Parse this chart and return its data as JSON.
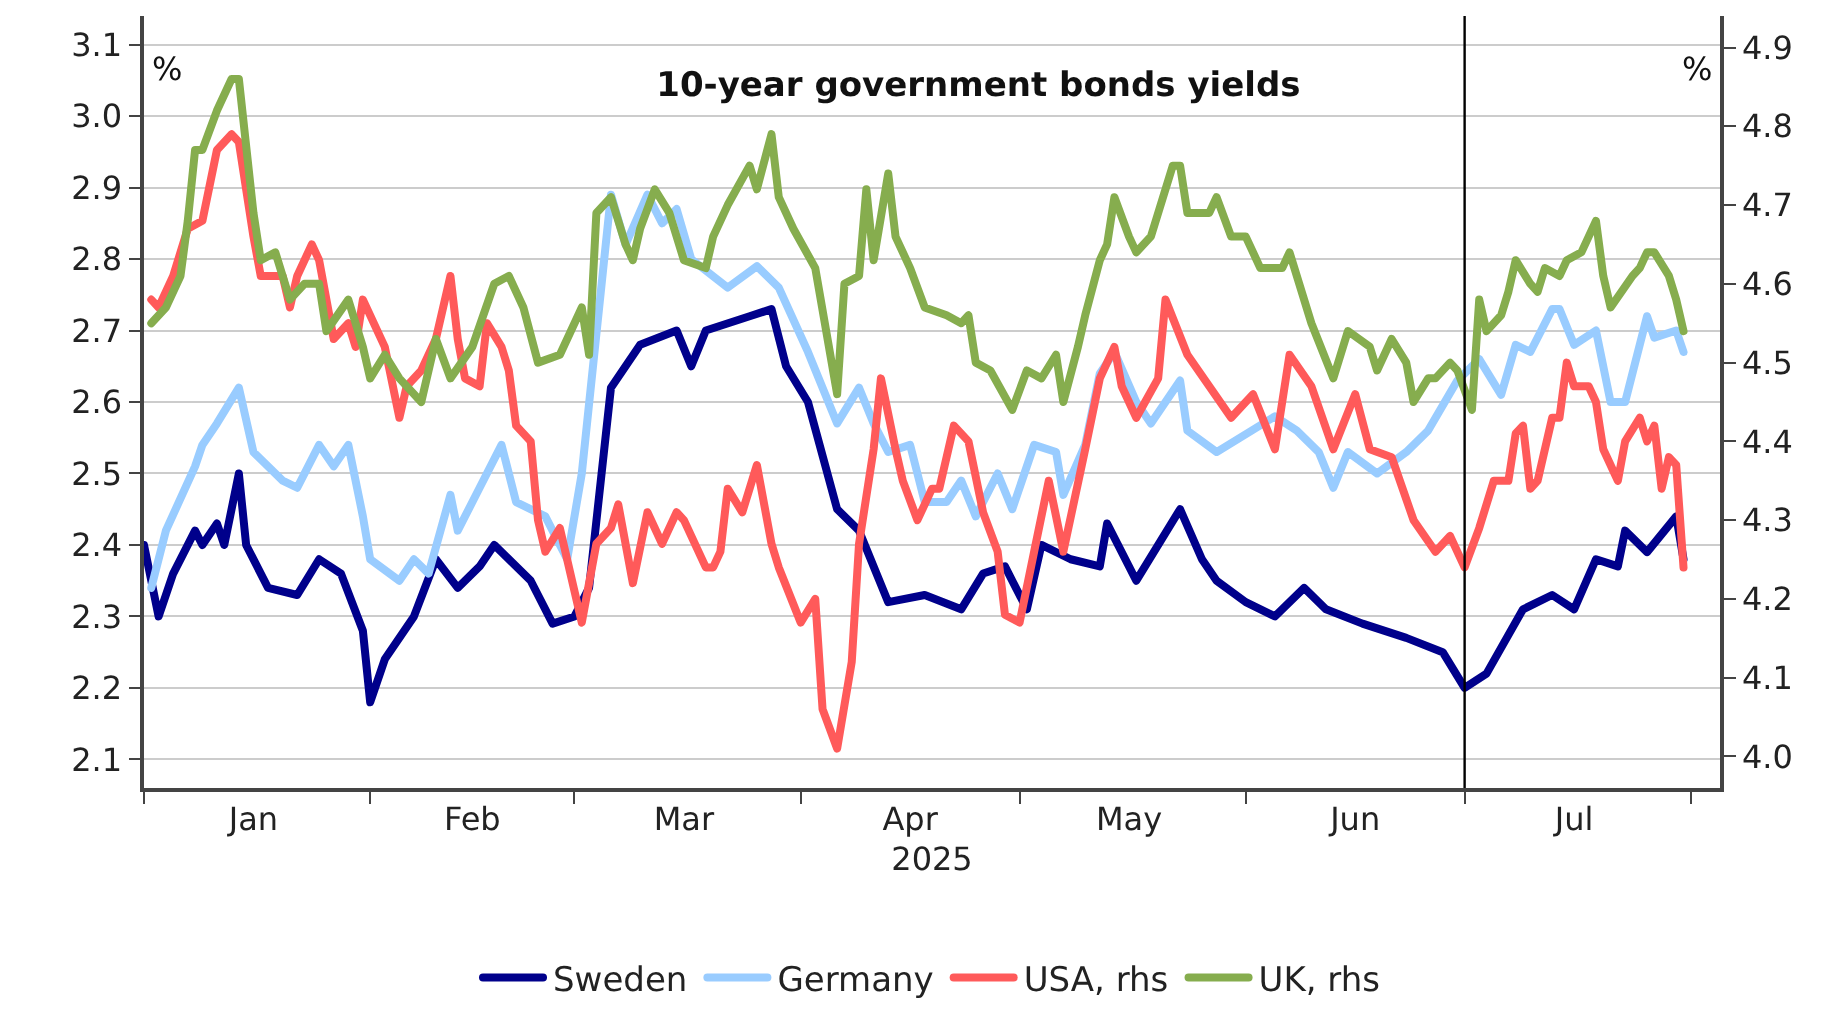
{
  "chart_data": {
    "type": "line",
    "title": "10-year government bonds yields",
    "xlabel": "2025",
    "annotations": [
      "%",
      "%"
    ],
    "xlim": [
      "2025-01-01",
      "2025-08-05"
    ],
    "xticks": [
      {
        "value": "2025-01-01",
        "label": null
      },
      {
        "value": "2025-01-16",
        "label": "Jan"
      },
      {
        "value": "2025-02-01",
        "label": null
      },
      {
        "value": "2025-02-15",
        "label": "Feb"
      },
      {
        "value": "2025-03-01",
        "label": null
      },
      {
        "value": "2025-03-16",
        "label": "Mar"
      },
      {
        "value": "2025-04-01",
        "label": null
      },
      {
        "value": "2025-04-16",
        "label": "Apr"
      },
      {
        "value": "2025-05-01",
        "label": null
      },
      {
        "value": "2025-05-16",
        "label": "May"
      },
      {
        "value": "2025-06-01",
        "label": null
      },
      {
        "value": "2025-06-16",
        "label": "Jun"
      },
      {
        "value": "2025-07-01",
        "label": null
      },
      {
        "value": "2025-07-16",
        "label": "Jul"
      },
      {
        "value": "2025-08-01",
        "label": null
      }
    ],
    "ylim": [
      2.06,
      3.14
    ],
    "yticks": [
      2.1,
      2.2,
      2.3,
      2.4,
      2.5,
      2.6,
      2.7,
      2.8,
      2.9,
      {
        "value": 3.0,
        "label": "3.0"
      },
      3.1
    ],
    "y2lim": [
      3.96,
      4.94
    ],
    "y2ticks": [
      {
        "value": 4.0,
        "label": "4.0"
      },
      4.1,
      4.2,
      4.3,
      4.4,
      4.5,
      4.6,
      4.7,
      4.8,
      4.9
    ],
    "grid": "y",
    "legend": "bottom",
    "marker": "none",
    "line_style": "solid",
    "ref_lines": [
      {
        "axis": "x",
        "value": "2025-07-01",
        "label": null,
        "color": "#000000"
      }
    ],
    "series": [
      {
        "name": "Sweden",
        "color": "#00008b",
        "x": [
          "2025-01-01",
          "2025-01-03",
          "2025-01-05",
          "2025-01-08",
          "2025-01-09",
          "2025-01-11",
          "2025-01-12",
          "2025-01-14",
          "2025-01-15",
          "2025-01-18",
          "2025-01-22",
          "2025-01-25",
          "2025-01-28",
          "2025-01-31",
          "2025-02-01",
          "2025-02-03",
          "2025-02-07",
          "2025-02-10",
          "2025-02-13",
          "2025-02-16",
          "2025-02-18",
          "2025-02-23",
          "2025-02-26",
          "2025-03-01",
          "2025-03-03",
          "2025-03-06",
          "2025-03-10",
          "2025-03-15",
          "2025-03-17",
          "2025-03-19",
          "2025-03-25",
          "2025-03-28",
          "2025-03-30",
          "2025-04-02",
          "2025-04-06",
          "2025-04-09",
          "2025-04-13",
          "2025-04-18",
          "2025-04-23",
          "2025-04-26",
          "2025-04-29",
          "2025-05-02",
          "2025-05-04",
          "2025-05-08",
          "2025-05-12",
          "2025-05-13",
          "2025-05-17",
          "2025-05-23",
          "2025-05-26",
          "2025-05-28",
          "2025-06-01",
          "2025-06-05",
          "2025-06-09",
          "2025-06-12",
          "2025-06-17",
          "2025-06-23",
          "2025-06-28",
          "2025-07-01",
          "2025-07-04",
          "2025-07-09",
          "2025-07-13",
          "2025-07-16",
          "2025-07-19",
          "2025-07-22",
          "2025-07-23",
          "2025-07-26",
          "2025-07-30",
          "2025-07-31"
        ],
        "values": [
          2.4,
          2.3,
          2.36,
          2.42,
          2.4,
          2.43,
          2.4,
          2.5,
          2.4,
          2.34,
          2.33,
          2.38,
          2.36,
          2.28,
          2.18,
          2.24,
          2.3,
          2.38,
          2.34,
          2.37,
          2.4,
          2.35,
          2.29,
          2.3,
          2.34,
          2.62,
          2.68,
          2.7,
          2.65,
          2.7,
          2.72,
          2.73,
          2.65,
          2.6,
          2.45,
          2.42,
          2.32,
          2.33,
          2.31,
          2.36,
          2.37,
          2.31,
          2.4,
          2.38,
          2.37,
          2.43,
          2.35,
          2.45,
          2.38,
          2.35,
          2.32,
          2.3,
          2.34,
          2.31,
          2.29,
          2.27,
          2.25,
          2.2,
          2.22,
          2.31,
          2.33,
          2.31,
          2.38,
          2.37,
          2.42,
          2.39,
          2.44,
          2.38
        ]
      },
      {
        "name": "Germany",
        "color": "#99ccff",
        "x": [
          "2025-01-02",
          "2025-01-04",
          "2025-01-08",
          "2025-01-09",
          "2025-01-11",
          "2025-01-14",
          "2025-01-16",
          "2025-01-20",
          "2025-01-22",
          "2025-01-25",
          "2025-01-27",
          "2025-01-29",
          "2025-01-31",
          "2025-02-01",
          "2025-02-05",
          "2025-02-07",
          "2025-02-09",
          "2025-02-12",
          "2025-02-13",
          "2025-02-16",
          "2025-02-19",
          "2025-02-21",
          "2025-02-25",
          "2025-02-28",
          "2025-03-02",
          "2025-03-06",
          "2025-03-08",
          "2025-03-11",
          "2025-03-13",
          "2025-03-15",
          "2025-03-17",
          "2025-03-22",
          "2025-03-26",
          "2025-03-29",
          "2025-04-02",
          "2025-04-06",
          "2025-04-09",
          "2025-04-11",
          "2025-04-13",
          "2025-04-16",
          "2025-04-18",
          "2025-04-21",
          "2025-04-23",
          "2025-04-25",
          "2025-04-28",
          "2025-04-30",
          "2025-05-03",
          "2025-05-06",
          "2025-05-07",
          "2025-05-10",
          "2025-05-12",
          "2025-05-14",
          "2025-05-17",
          "2025-05-19",
          "2025-05-23",
          "2025-05-24",
          "2025-05-28",
          "2025-06-05",
          "2025-06-08",
          "2025-06-11",
          "2025-06-13",
          "2025-06-15",
          "2025-06-19",
          "2025-06-23",
          "2025-06-26",
          "2025-06-30",
          "2025-07-03",
          "2025-07-06",
          "2025-07-08",
          "2025-07-10",
          "2025-07-13",
          "2025-07-14",
          "2025-07-16",
          "2025-07-19",
          "2025-07-21",
          "2025-07-23",
          "2025-07-26",
          "2025-07-27",
          "2025-07-30",
          "2025-07-31"
        ],
        "values": [
          2.34,
          2.42,
          2.51,
          2.54,
          2.57,
          2.62,
          2.53,
          2.49,
          2.48,
          2.54,
          2.51,
          2.54,
          2.44,
          2.38,
          2.35,
          2.38,
          2.36,
          2.47,
          2.42,
          2.48,
          2.54,
          2.46,
          2.44,
          2.38,
          2.5,
          2.89,
          2.82,
          2.89,
          2.85,
          2.87,
          2.8,
          2.76,
          2.79,
          2.76,
          2.67,
          2.57,
          2.62,
          2.57,
          2.53,
          2.54,
          2.46,
          2.46,
          2.49,
          2.44,
          2.5,
          2.45,
          2.54,
          2.53,
          2.47,
          2.54,
          2.64,
          2.67,
          2.6,
          2.57,
          2.63,
          2.56,
          2.53,
          2.58,
          2.56,
          2.53,
          2.48,
          2.53,
          2.5,
          2.53,
          2.56,
          2.63,
          2.66,
          2.61,
          2.68,
          2.67,
          2.73,
          2.73,
          2.68,
          2.7,
          2.6,
          2.6,
          2.72,
          2.69,
          2.7,
          2.67
        ]
      },
      {
        "name": "USA, rhs",
        "color": "#ff5a5a",
        "axis": "y2",
        "x": [
          "2025-01-02",
          "2025-01-03",
          "2025-01-05",
          "2025-01-07",
          "2025-01-09",
          "2025-01-11",
          "2025-01-13",
          "2025-01-14",
          "2025-01-16",
          "2025-01-17",
          "2025-01-20",
          "2025-01-21",
          "2025-01-22",
          "2025-01-24",
          "2025-01-25",
          "2025-01-27",
          "2025-01-29",
          "2025-01-30",
          "2025-01-31",
          "2025-02-02",
          "2025-02-03",
          "2025-02-05",
          "2025-02-06",
          "2025-02-08",
          "2025-02-09",
          "2025-02-10",
          "2025-02-12",
          "2025-02-13",
          "2025-02-14",
          "2025-02-16",
          "2025-02-17",
          "2025-02-19",
          "2025-02-20",
          "2025-02-21",
          "2025-02-23",
          "2025-02-24",
          "2025-02-25",
          "2025-02-27",
          "2025-03-02",
          "2025-03-04",
          "2025-03-06",
          "2025-03-07",
          "2025-03-09",
          "2025-03-11",
          "2025-03-13",
          "2025-03-15",
          "2025-03-16",
          "2025-03-17",
          "2025-03-19",
          "2025-03-20",
          "2025-03-21",
          "2025-03-22",
          "2025-03-24",
          "2025-03-26",
          "2025-03-28",
          "2025-03-29",
          "2025-04-01",
          "2025-04-03",
          "2025-04-04",
          "2025-04-06",
          "2025-04-08",
          "2025-04-09",
          "2025-04-11",
          "2025-04-12",
          "2025-04-14",
          "2025-04-15",
          "2025-04-17",
          "2025-04-19",
          "2025-04-20",
          "2025-04-22",
          "2025-04-24",
          "2025-04-26",
          "2025-04-28",
          "2025-04-29",
          "2025-05-01",
          "2025-05-03",
          "2025-05-05",
          "2025-05-07",
          "2025-05-10",
          "2025-05-12",
          "2025-05-14",
          "2025-05-15",
          "2025-05-17",
          "2025-05-20",
          "2025-05-21",
          "2025-05-24",
          "2025-05-27",
          "2025-05-30",
          "2025-06-02",
          "2025-06-05",
          "2025-06-07",
          "2025-06-10",
          "2025-06-13",
          "2025-06-16",
          "2025-06-18",
          "2025-06-21",
          "2025-06-24",
          "2025-06-27",
          "2025-06-29",
          "2025-07-01",
          "2025-07-03",
          "2025-07-05",
          "2025-07-07",
          "2025-07-08",
          "2025-07-09",
          "2025-07-10",
          "2025-07-11",
          "2025-07-13",
          "2025-07-14",
          "2025-07-15",
          "2025-07-16",
          "2025-07-18",
          "2025-07-19",
          "2025-07-20",
          "2025-07-22",
          "2025-07-23",
          "2025-07-25",
          "2025-07-26",
          "2025-07-27",
          "2025-07-28",
          "2025-07-29",
          "2025-07-30",
          "2025-07-31"
        ],
        "values": [
          4.58,
          4.57,
          4.61,
          4.67,
          4.68,
          4.77,
          4.79,
          4.78,
          4.66,
          4.61,
          4.61,
          4.57,
          4.61,
          4.65,
          4.63,
          4.53,
          4.55,
          4.52,
          4.58,
          4.54,
          4.52,
          4.43,
          4.47,
          4.49,
          4.51,
          4.53,
          4.61,
          4.53,
          4.48,
          4.47,
          4.55,
          4.52,
          4.49,
          4.42,
          4.4,
          4.3,
          4.26,
          4.29,
          4.17,
          4.27,
          4.29,
          4.32,
          4.22,
          4.31,
          4.27,
          4.31,
          4.3,
          4.28,
          4.24,
          4.24,
          4.26,
          4.34,
          4.31,
          4.37,
          4.27,
          4.24,
          4.17,
          4.2,
          4.06,
          4.01,
          4.12,
          4.27,
          4.39,
          4.48,
          4.39,
          4.35,
          4.3,
          4.34,
          4.34,
          4.42,
          4.4,
          4.31,
          4.26,
          4.18,
          4.17,
          4.26,
          4.35,
          4.26,
          4.39,
          4.48,
          4.52,
          4.47,
          4.43,
          4.48,
          4.58,
          4.51,
          4.47,
          4.43,
          4.46,
          4.39,
          4.51,
          4.47,
          4.39,
          4.46,
          4.39,
          4.38,
          4.3,
          4.26,
          4.28,
          4.24,
          4.29,
          4.35,
          4.35,
          4.41,
          4.42,
          4.34,
          4.35,
          4.43,
          4.43,
          4.5,
          4.47,
          4.47,
          4.45,
          4.39,
          4.35,
          4.4,
          4.43,
          4.4,
          4.42,
          4.34,
          4.38,
          4.37,
          4.24
        ]
      },
      {
        "name": "UK, rhs",
        "color": "#86ad4e",
        "axis": "y2",
        "x": [
          "2025-01-02",
          "2025-01-04",
          "2025-01-06",
          "2025-01-07",
          "2025-01-08",
          "2025-01-09",
          "2025-01-11",
          "2025-01-13",
          "2025-01-14",
          "2025-01-16",
          "2025-01-17",
          "2025-01-19",
          "2025-01-21",
          "2025-01-23",
          "2025-01-25",
          "2025-01-26",
          "2025-01-29",
          "2025-01-31",
          "2025-02-01",
          "2025-02-03",
          "2025-02-05",
          "2025-02-08",
          "2025-02-10",
          "2025-02-12",
          "2025-02-15",
          "2025-02-18",
          "2025-02-20",
          "2025-02-22",
          "2025-02-24",
          "2025-02-27",
          "2025-03-02",
          "2025-03-03",
          "2025-03-04",
          "2025-03-06",
          "2025-03-08",
          "2025-03-09",
          "2025-03-10",
          "2025-03-12",
          "2025-03-14",
          "2025-03-16",
          "2025-03-19",
          "2025-03-20",
          "2025-03-22",
          "2025-03-25",
          "2025-03-26",
          "2025-03-28",
          "2025-03-29",
          "2025-03-31",
          "2025-04-03",
          "2025-04-06",
          "2025-04-07",
          "2025-04-09",
          "2025-04-10",
          "2025-04-11",
          "2025-04-13",
          "2025-04-14",
          "2025-04-16",
          "2025-04-18",
          "2025-04-21",
          "2025-04-23",
          "2025-04-24",
          "2025-04-25",
          "2025-04-27",
          "2025-04-30",
          "2025-05-02",
          "2025-05-04",
          "2025-05-06",
          "2025-05-07",
          "2025-05-09",
          "2025-05-10",
          "2025-05-12",
          "2025-05-13",
          "2025-05-14",
          "2025-05-16",
          "2025-05-17",
          "2025-05-19",
          "2025-05-22",
          "2025-05-23",
          "2025-05-24",
          "2025-05-27",
          "2025-05-28",
          "2025-05-30",
          "2025-06-01",
          "2025-06-03",
          "2025-06-06",
          "2025-06-07",
          "2025-06-10",
          "2025-06-13",
          "2025-06-15",
          "2025-06-18",
          "2025-06-19",
          "2025-06-21",
          "2025-06-23",
          "2025-06-24",
          "2025-06-26",
          "2025-06-27",
          "2025-06-29",
          "2025-06-30",
          "2025-07-02",
          "2025-07-03",
          "2025-07-04",
          "2025-07-06",
          "2025-07-07",
          "2025-07-08",
          "2025-07-10",
          "2025-07-11",
          "2025-07-12",
          "2025-07-14",
          "2025-07-15",
          "2025-07-17",
          "2025-07-19",
          "2025-07-20",
          "2025-07-21",
          "2025-07-24",
          "2025-07-25",
          "2025-07-26",
          "2025-07-27",
          "2025-07-29",
          "2025-07-30",
          "2025-07-31"
        ],
        "values": [
          4.55,
          4.57,
          4.61,
          4.68,
          4.77,
          4.77,
          4.82,
          4.86,
          4.86,
          4.69,
          4.63,
          4.64,
          4.58,
          4.6,
          4.6,
          4.54,
          4.58,
          4.52,
          4.48,
          4.51,
          4.48,
          4.45,
          4.53,
          4.48,
          4.52,
          4.6,
          4.61,
          4.57,
          4.5,
          4.51,
          4.57,
          4.51,
          4.69,
          4.71,
          4.65,
          4.63,
          4.67,
          4.72,
          4.69,
          4.63,
          4.62,
          4.66,
          4.7,
          4.75,
          4.72,
          4.79,
          4.71,
          4.67,
          4.62,
          4.46,
          4.6,
          4.61,
          4.72,
          4.63,
          4.74,
          4.66,
          4.62,
          4.57,
          4.56,
          4.55,
          4.56,
          4.5,
          4.49,
          4.44,
          4.49,
          4.48,
          4.51,
          4.45,
          4.52,
          4.56,
          4.63,
          4.65,
          4.71,
          4.66,
          4.64,
          4.66,
          4.75,
          4.75,
          4.69,
          4.69,
          4.71,
          4.66,
          4.66,
          4.62,
          4.62,
          4.64,
          4.55,
          4.48,
          4.54,
          4.52,
          4.49,
          4.53,
          4.5,
          4.45,
          4.48,
          4.48,
          4.5,
          4.49,
          4.44,
          4.58,
          4.54,
          4.56,
          4.59,
          4.63,
          4.6,
          4.59,
          4.62,
          4.61,
          4.63,
          4.64,
          4.68,
          4.61,
          4.57,
          4.61,
          4.62,
          4.64,
          4.64,
          4.61,
          4.58,
          4.54
        ]
      }
    ]
  }
}
